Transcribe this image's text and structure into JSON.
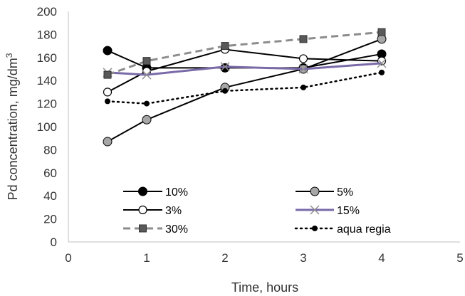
{
  "chart_data": {
    "type": "line",
    "xlabel": "Time, hours",
    "ylabel_main": "Pd concentration, mg/dm",
    "ylabel_sup": "3",
    "xlim": [
      0,
      5
    ],
    "ylim": [
      0,
      200
    ],
    "xticks": [
      0,
      1,
      2,
      3,
      4,
      5
    ],
    "yticks": [
      0,
      20,
      40,
      60,
      80,
      100,
      120,
      140,
      160,
      180,
      200
    ],
    "grid": false,
    "legend_position": "bottom-inside",
    "x": [
      0.5,
      1,
      2,
      3,
      4
    ],
    "series": [
      {
        "name": "10%",
        "values": [
          166,
          151,
          151,
          151,
          163
        ],
        "color": "#000000",
        "line": "solid",
        "marker": "filled-circle",
        "marker_fill": "#000000"
      },
      {
        "name": "5%",
        "values": [
          87,
          106,
          134,
          150,
          176
        ],
        "color": "#000000",
        "line": "solid",
        "marker": "filled-circle",
        "marker_fill": "#a6a6a6"
      },
      {
        "name": "3%",
        "values": [
          130,
          148,
          167,
          159,
          157
        ],
        "color": "#000000",
        "line": "solid",
        "marker": "open-circle",
        "marker_fill": "#ffffff"
      },
      {
        "name": "15%",
        "values": [
          147,
          145,
          152,
          150,
          155
        ],
        "color": "#7a6aa8",
        "line": "solid",
        "marker": "x",
        "marker_fill": "none"
      },
      {
        "name": "30%",
        "values": [
          145,
          157,
          170,
          176,
          182
        ],
        "color": "#8c8c8c",
        "line": "dashed",
        "marker": "square",
        "marker_fill": "#595959"
      },
      {
        "name": "aqua regia",
        "values": [
          122,
          120,
          131,
          134,
          147
        ],
        "color": "#000000",
        "line": "dotted",
        "marker": "small-filled-circle",
        "marker_fill": "#000000"
      }
    ]
  }
}
